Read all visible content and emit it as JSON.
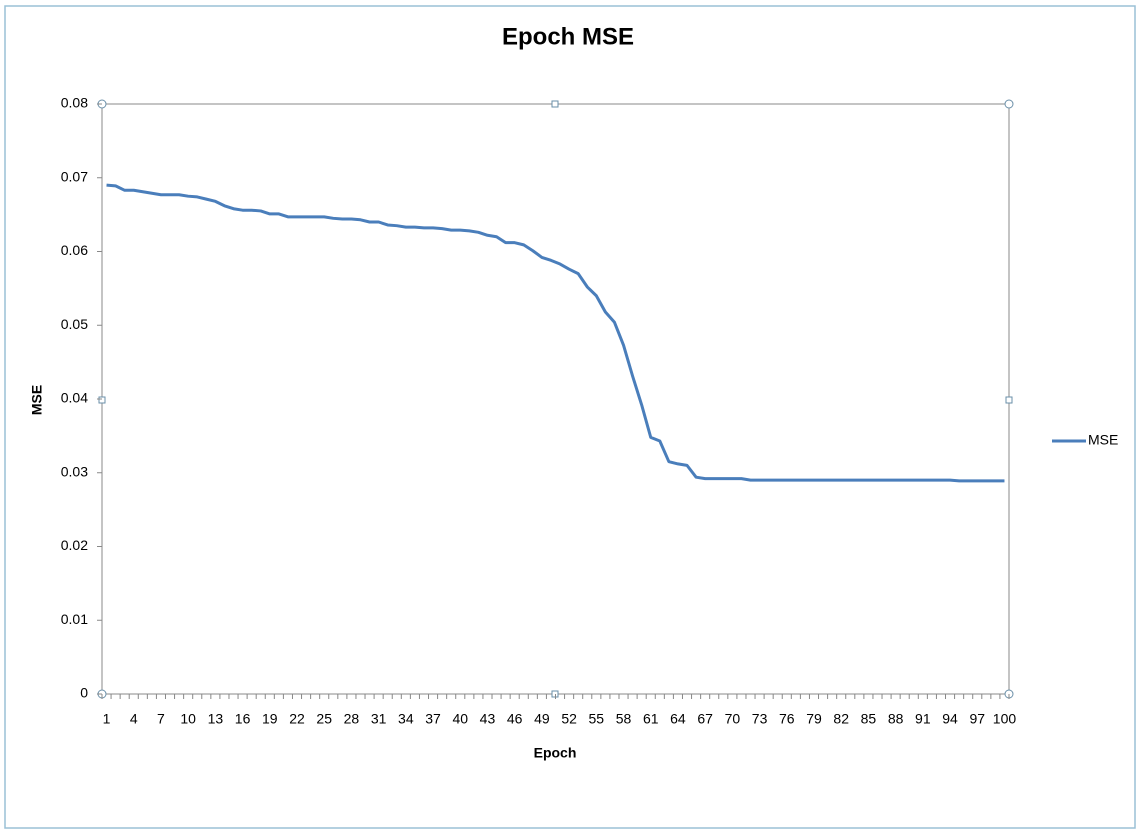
{
  "chart_data": {
    "type": "line",
    "title": "Epoch MSE",
    "x_label": "Epoch",
    "y_label": "MSE",
    "categories": [
      1,
      null,
      null,
      4,
      null,
      null,
      7,
      null,
      null,
      10,
      null,
      null,
      13,
      null,
      null,
      16,
      null,
      null,
      19,
      null,
      null,
      22,
      null,
      null,
      25,
      null,
      null,
      28,
      null,
      null,
      31,
      null,
      null,
      34,
      null,
      null,
      37,
      null,
      null,
      40,
      null,
      null,
      43,
      null,
      null,
      46,
      null,
      null,
      49,
      null,
      null,
      52,
      null,
      null,
      55,
      null,
      null,
      58,
      null,
      null,
      61,
      null,
      null,
      64,
      null,
      null,
      67,
      null,
      null,
      70,
      null,
      null,
      73,
      null,
      null,
      76,
      null,
      null,
      79,
      null,
      null,
      82,
      null,
      null,
      85,
      null,
      null,
      88,
      null,
      null,
      91,
      null,
      null,
      94,
      null,
      null,
      97,
      null,
      null,
      100
    ],
    "series": [
      {
        "name": "MSE",
        "color": "#4a7ebb",
        "values": [
          0.069,
          0.0689,
          0.0683,
          0.0683,
          0.0681,
          0.0679,
          0.0677,
          0.0677,
          0.0677,
          0.0675,
          0.0674,
          0.0671,
          0.0668,
          0.0662,
          0.0658,
          0.0656,
          0.0656,
          0.0655,
          0.0651,
          0.0651,
          0.0647,
          0.0647,
          0.0647,
          0.0647,
          0.0647,
          0.0645,
          0.0644,
          0.0644,
          0.0643,
          0.064,
          0.064,
          0.0636,
          0.0635,
          0.0633,
          0.0633,
          0.0632,
          0.0632,
          0.0631,
          0.0629,
          0.0629,
          0.0628,
          0.0626,
          0.0622,
          0.062,
          0.0612,
          0.0612,
          0.0609,
          0.0601,
          0.0592,
          0.0588,
          0.0583,
          0.0576,
          0.057,
          0.0552,
          0.054,
          0.0518,
          0.0504,
          0.0473,
          0.0431,
          0.0392,
          0.0348,
          0.0343,
          0.0315,
          0.0312,
          0.031,
          0.0294,
          0.0292,
          0.0292,
          0.0292,
          0.0292,
          0.0292,
          0.029,
          0.029,
          0.029,
          0.029,
          0.029,
          0.029,
          0.029,
          0.029,
          0.029,
          0.029,
          0.029,
          0.029,
          0.029,
          0.029,
          0.029,
          0.029,
          0.029,
          0.029,
          0.029,
          0.029,
          0.029,
          0.029,
          0.029,
          0.0289,
          0.0289,
          0.0289,
          0.0289,
          0.0289,
          0.0289
        ]
      }
    ],
    "ylim": [
      0,
      0.08
    ],
    "yticks": [
      0,
      0.01,
      0.02,
      0.03,
      0.04,
      0.05,
      0.06,
      0.07,
      0.08
    ],
    "grid": false,
    "legend": "right"
  }
}
